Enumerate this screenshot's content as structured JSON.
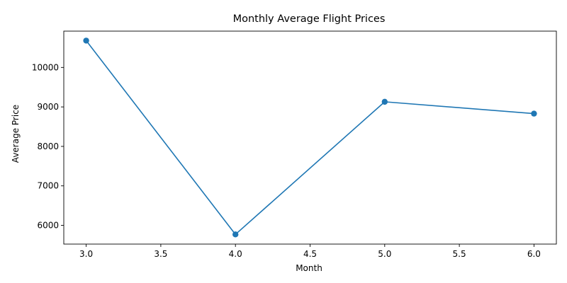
{
  "chart_data": {
    "type": "line",
    "title": "Monthly Average Flight Prices",
    "xlabel": "Month",
    "ylabel": "Average Price",
    "x": [
      3.0,
      4.0,
      5.0,
      6.0
    ],
    "series": [
      {
        "values": [
          10680,
          5770,
          9130,
          8830
        ],
        "color": "#1f77b4",
        "marker": "circle"
      }
    ],
    "xlim": [
      2.85,
      6.15
    ],
    "ylim": [
      5525,
      10920
    ],
    "xticks": [
      3.0,
      3.5,
      4.0,
      4.5,
      5.0,
      5.5,
      6.0
    ],
    "xtick_labels": [
      "3.0",
      "3.5",
      "4.0",
      "4.5",
      "5.0",
      "5.5",
      "6.0"
    ],
    "yticks": [
      6000,
      7000,
      8000,
      9000,
      10000
    ],
    "ytick_labels": [
      "6000",
      "7000",
      "8000",
      "9000",
      "10000"
    ],
    "grid": false,
    "legend": "none"
  }
}
